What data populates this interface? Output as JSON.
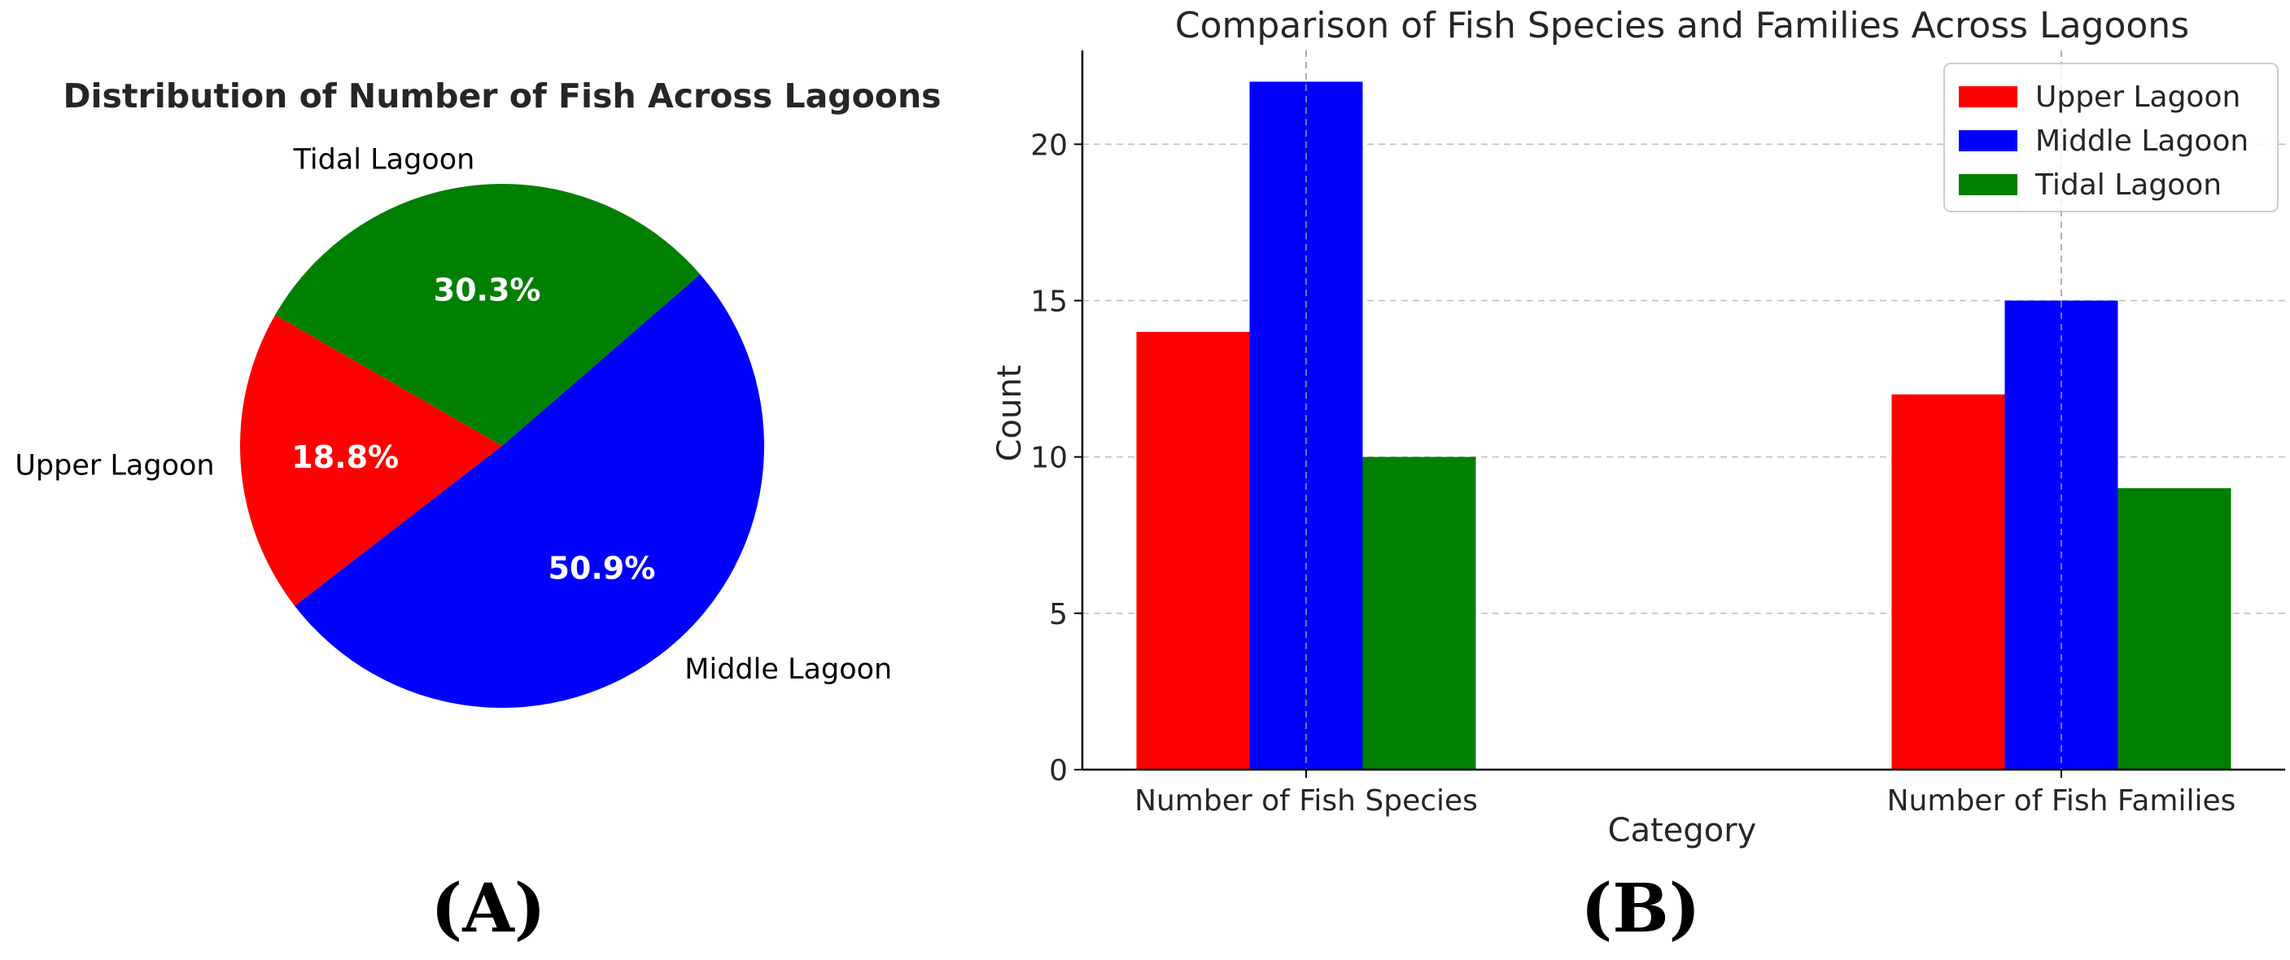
{
  "panel_labels": {
    "a": "(A)",
    "b": "(B)"
  },
  "colors": {
    "upper": "#ff0000",
    "middle": "#0000ff",
    "tidal": "#008000"
  },
  "chart_data": [
    {
      "type": "pie",
      "title": "Distribution of Number of Fish Across Lagoons",
      "labels": [
        "Upper Lagoon",
        "Middle Lagoon",
        "Tidal Lagoon"
      ],
      "values": [
        18.8,
        50.9,
        30.3
      ],
      "value_labels": [
        "18.8%",
        "50.9%",
        "30.3%"
      ],
      "start_angle_deg": 150
    },
    {
      "type": "bar",
      "title": "Comparison of Fish Species and Families Across Lagoons",
      "categories": [
        "Number of Fish Species",
        "Number of Fish Families"
      ],
      "series": [
        {
          "name": "Upper Lagoon",
          "values": [
            14,
            12
          ]
        },
        {
          "name": "Middle Lagoon",
          "values": [
            22,
            15
          ]
        },
        {
          "name": "Tidal Lagoon",
          "values": [
            10,
            9
          ]
        }
      ],
      "xlabel": "Category",
      "ylabel": "Count",
      "ylim": [
        0,
        23
      ],
      "yticks": [
        0,
        5,
        10,
        15,
        20
      ],
      "grid": true,
      "legend": "top-right"
    }
  ]
}
